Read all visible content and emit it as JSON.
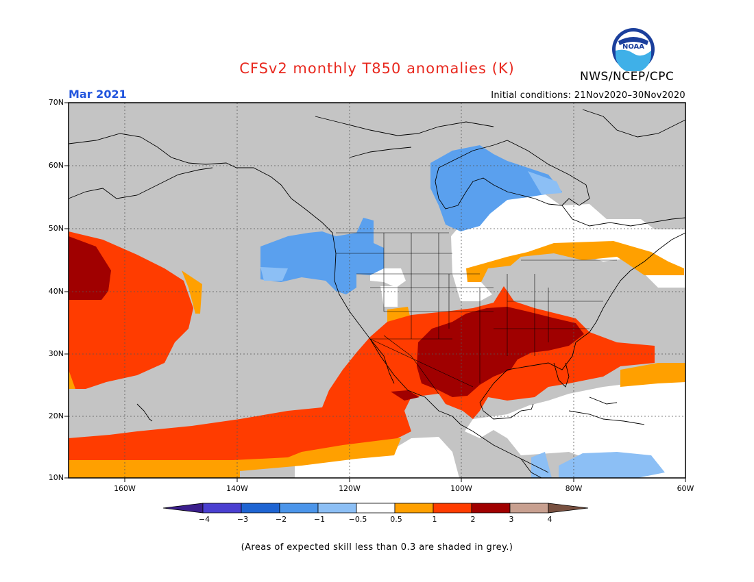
{
  "title": "CFSv2 monthly T850 anomalies (K)",
  "agency": "NWS/NCEP/CPC",
  "logo_text": "NOAA",
  "month": "Mar 2021",
  "initial_conditions": "Initial conditions: 21Nov2020–30Nov2020",
  "footnote": "(Areas of expected skill less than 0.3 are shaded in grey.)",
  "lat_labels": [
    "70N",
    "60N",
    "50N",
    "40N",
    "30N",
    "20N",
    "10N"
  ],
  "lon_labels": [
    "160W",
    "140W",
    "120W",
    "100W",
    "80W",
    "60W"
  ],
  "colorbar": {
    "labels": [
      "−4",
      "−3",
      "−2",
      "−1",
      "−0.5",
      "0.5",
      "1",
      "2",
      "3",
      "4"
    ],
    "colors": [
      "#3b1e8c",
      "#4a3fd0",
      "#1e64d2",
      "#4b95ea",
      "#8cbff5",
      "#ffffff",
      "#ffa000",
      "#ff3c00",
      "#a00000",
      "#c8a090",
      "#785040"
    ]
  },
  "colors": {
    "grey": "#c4c4c4",
    "title_red": "#e8281e",
    "month_blue": "#2255dd"
  }
}
